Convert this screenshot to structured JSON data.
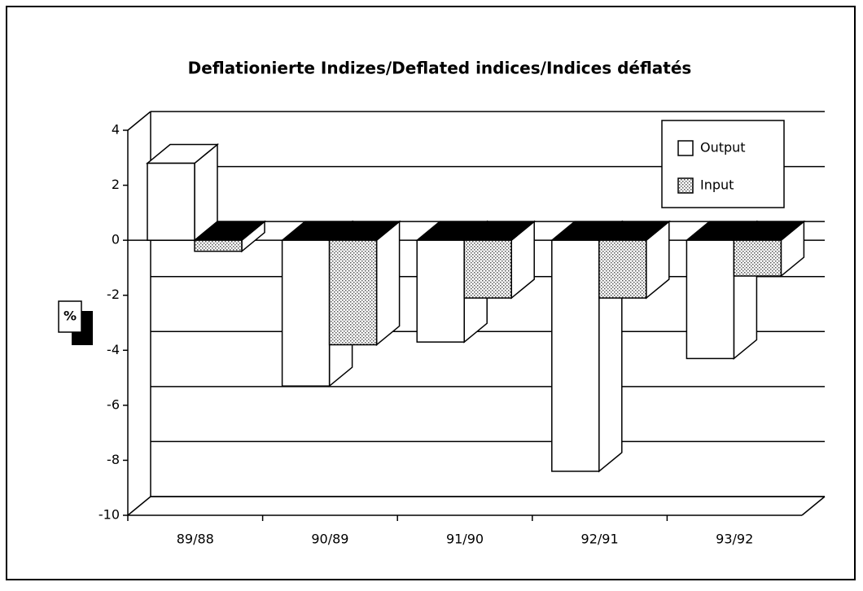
{
  "chart_data": {
    "type": "bar3d",
    "title": "Deflationierte Indizes/Deflated indices/Indices déflatés",
    "y_label": "%",
    "categories": [
      "89/88",
      "90/89",
      "91/90",
      "92/91",
      "93/92"
    ],
    "series": [
      {
        "name": "Output",
        "color": "#ffffff",
        "values": [
          2.8,
          -5.3,
          -3.7,
          -8.4,
          -4.3
        ]
      },
      {
        "name": "Input",
        "color": "#d0d0d0",
        "pattern": "dots",
        "values": [
          -0.4,
          -3.8,
          -2.1,
          -2.1,
          -1.3
        ]
      }
    ],
    "ylim": [
      -10,
      4
    ],
    "yticks": [
      -10,
      -8,
      -6,
      -4,
      -2,
      0,
      2,
      4
    ],
    "grid": true,
    "legend": "top-right"
  }
}
